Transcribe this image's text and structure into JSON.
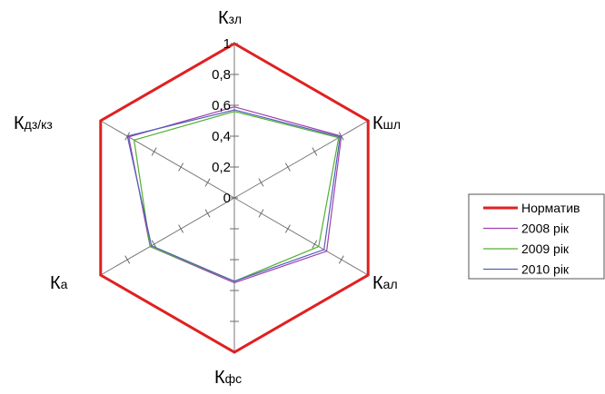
{
  "chart_data": {
    "type": "radar",
    "axes": [
      {
        "main": "К",
        "sub": "зл"
      },
      {
        "main": "К",
        "sub": "шл"
      },
      {
        "main": "К",
        "sub": "ал"
      },
      {
        "main": "К",
        "sub": "фс"
      },
      {
        "main": "К",
        "sub": "а"
      },
      {
        "main": "К",
        "sub": "дз/кз"
      }
    ],
    "radial_range": [
      0,
      1
    ],
    "radial_ticks": [
      "0",
      "0,2",
      "0,4",
      "0,6",
      "0,8",
      "1"
    ],
    "minor_ticks_per_spoke": 5,
    "grid": false,
    "legend_position": "right",
    "series": [
      {
        "name": "Норматив",
        "color": "#e02020",
        "values": [
          1,
          1,
          1,
          1,
          1,
          1
        ]
      },
      {
        "name": "2008 рік",
        "color": "#a040b0",
        "values": [
          0.59,
          0.8,
          0.69,
          0.55,
          0.63,
          0.79
        ]
      },
      {
        "name": "2009 рік",
        "color": "#50b030",
        "values": [
          0.56,
          0.78,
          0.63,
          0.54,
          0.63,
          0.75
        ]
      },
      {
        "name": "2010 рік",
        "color": "#5060b8",
        "values": [
          0.57,
          0.79,
          0.67,
          0.54,
          0.62,
          0.8
        ]
      }
    ]
  }
}
